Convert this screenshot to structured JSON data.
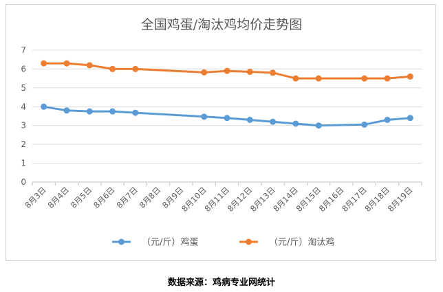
{
  "chart_data": {
    "type": "line",
    "title": "全国鸡蛋/淘汰鸡均价走势图",
    "categories": [
      "8月3日",
      "8月4日",
      "8月5日",
      "8月6日",
      "8月7日",
      "8月8日",
      "8月9日",
      "8月10日",
      "8月11日",
      "8月12日",
      "8月13日",
      "8月14日",
      "8月15日",
      "8月16日",
      "8月17日",
      "8月18日",
      "8月19日"
    ],
    "series": [
      {
        "name": "（元/斤）鸡蛋",
        "color": "#5b9bd5",
        "values": [
          4.0,
          3.8,
          3.75,
          3.75,
          3.68,
          null,
          null,
          3.47,
          3.4,
          3.3,
          3.2,
          3.1,
          3.0,
          null,
          3.05,
          3.3,
          3.4
        ]
      },
      {
        "name": "（元/斤）淘汰鸡",
        "color": "#ed7d31",
        "values": [
          6.3,
          6.3,
          6.2,
          6.0,
          6.0,
          null,
          null,
          5.82,
          5.9,
          5.85,
          5.8,
          5.5,
          5.5,
          null,
          5.5,
          5.5,
          5.6
        ]
      }
    ],
    "ylim": [
      0,
      7
    ],
    "yticks": [
      "0",
      "1",
      "2",
      "3",
      "4",
      "5",
      "6",
      "7"
    ],
    "grid": true,
    "legend": "bottom"
  },
  "source_note": "数据来源：鸡病专业网统计"
}
